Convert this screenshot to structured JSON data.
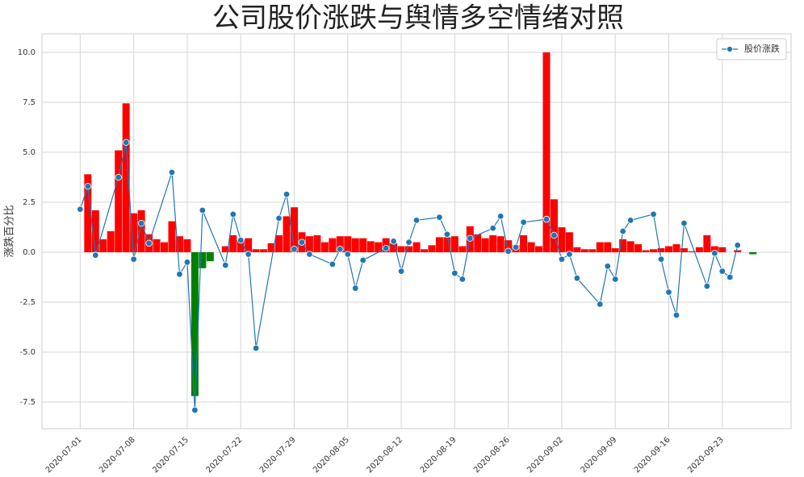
{
  "chart_data": {
    "type": "combo",
    "title": "公司股价涨跌与舆情多空情绪对照",
    "ylabel": "涨跌百分比",
    "xlim": [
      "2020-06-26",
      "2020-10-02"
    ],
    "xticks": [
      "2020-07-01",
      "2020-07-08",
      "2020-07-15",
      "2020-07-22",
      "2020-07-29",
      "2020-08-05",
      "2020-08-12",
      "2020-08-19",
      "2020-08-26",
      "2020-09-02",
      "2020-09-09",
      "2020-09-16",
      "2020-09-23"
    ],
    "ylim": [
      -8.83,
      10.93
    ],
    "yticks": [
      {
        "value": -7.5,
        "label": "-7.5"
      },
      {
        "value": -5,
        "label": "-5.0"
      },
      {
        "value": -2.5,
        "label": "-2.5"
      },
      {
        "value": 0,
        "label": "0.0"
      },
      {
        "value": 2.5,
        "label": "2.5"
      },
      {
        "value": 5,
        "label": "5.0"
      },
      {
        "value": 7.5,
        "label": "7.5"
      },
      {
        "value": 10,
        "label": "10.0"
      }
    ],
    "grid": true,
    "legend": "upper right",
    "series": [
      {
        "type": "bar",
        "color": "#ff0000",
        "negative_color": "#008000",
        "x": [
          "2020-07-02",
          "2020-07-03",
          "2020-07-04",
          "2020-07-05",
          "2020-07-06",
          "2020-07-07",
          "2020-07-08",
          "2020-07-09",
          "2020-07-10",
          "2020-07-11",
          "2020-07-12",
          "2020-07-13",
          "2020-07-14",
          "2020-07-15",
          "2020-07-16",
          "2020-07-17",
          "2020-07-18",
          "2020-07-20",
          "2020-07-21",
          "2020-07-22",
          "2020-07-23",
          "2020-07-24",
          "2020-07-25",
          "2020-07-26",
          "2020-07-27",
          "2020-07-28",
          "2020-07-29",
          "2020-07-30",
          "2020-07-31",
          "2020-08-01",
          "2020-08-02",
          "2020-08-03",
          "2020-08-04",
          "2020-08-05",
          "2020-08-06",
          "2020-08-07",
          "2020-08-08",
          "2020-08-09",
          "2020-08-10",
          "2020-08-11",
          "2020-08-12",
          "2020-08-13",
          "2020-08-14",
          "2020-08-15",
          "2020-08-16",
          "2020-08-17",
          "2020-08-18",
          "2020-08-19",
          "2020-08-20",
          "2020-08-21",
          "2020-08-22",
          "2020-08-23",
          "2020-08-24",
          "2020-08-25",
          "2020-08-26",
          "2020-08-27",
          "2020-08-28",
          "2020-08-29",
          "2020-08-30",
          "2020-08-31",
          "2020-09-01",
          "2020-09-02",
          "2020-09-03",
          "2020-09-04",
          "2020-09-05",
          "2020-09-06",
          "2020-09-07",
          "2020-09-08",
          "2020-09-09",
          "2020-09-10",
          "2020-09-11",
          "2020-09-12",
          "2020-09-13",
          "2020-09-14",
          "2020-09-15",
          "2020-09-16",
          "2020-09-17",
          "2020-09-18",
          "2020-09-19",
          "2020-09-20",
          "2020-09-21",
          "2020-09-22",
          "2020-09-23",
          "2020-09-25",
          "2020-09-27"
        ],
        "values": [
          3.9,
          2.1,
          0.65,
          1.05,
          5.1,
          7.45,
          1.95,
          2.1,
          0.9,
          0.65,
          0.5,
          1.55,
          0.8,
          0.65,
          -7.2,
          -0.8,
          -0.45,
          0.3,
          0.85,
          0.6,
          0.7,
          0.15,
          0.15,
          0.45,
          0.85,
          1.8,
          2.25,
          1.0,
          0.8,
          0.85,
          0.5,
          0.7,
          0.8,
          0.8,
          0.7,
          0.7,
          0.55,
          0.5,
          0.7,
          0.45,
          0.3,
          0.3,
          0.5,
          0.15,
          0.35,
          0.75,
          0.75,
          0.8,
          0.3,
          1.3,
          0.9,
          0.7,
          0.85,
          0.8,
          0.6,
          0.35,
          0.85,
          0.5,
          0.3,
          10.0,
          2.65,
          1.25,
          1.0,
          0.25,
          0.15,
          0.15,
          0.5,
          0.5,
          0.2,
          0.65,
          0.55,
          0.4,
          0.1,
          0.15,
          0.2,
          0.3,
          0.4,
          0.2,
          0.05,
          0.25,
          0.85,
          0.3,
          0.25,
          0.1,
          -0.1
        ]
      },
      {
        "type": "line",
        "name": "股价涨跌",
        "color": "#1f77b4",
        "x": [
          "2020-07-01",
          "2020-07-02",
          "2020-07-03",
          "2020-07-06",
          "2020-07-07",
          "2020-07-08",
          "2020-07-09",
          "2020-07-10",
          "2020-07-13",
          "2020-07-14",
          "2020-07-15",
          "2020-07-16",
          "2020-07-17",
          "2020-07-20",
          "2020-07-21",
          "2020-07-22",
          "2020-07-23",
          "2020-07-24",
          "2020-07-27",
          "2020-07-28",
          "2020-07-29",
          "2020-07-30",
          "2020-07-31",
          "2020-08-03",
          "2020-08-04",
          "2020-08-05",
          "2020-08-06",
          "2020-08-07",
          "2020-08-10",
          "2020-08-11",
          "2020-08-12",
          "2020-08-13",
          "2020-08-14",
          "2020-08-17",
          "2020-08-18",
          "2020-08-19",
          "2020-08-20",
          "2020-08-21",
          "2020-08-24",
          "2020-08-25",
          "2020-08-26",
          "2020-08-27",
          "2020-08-28",
          "2020-08-31",
          "2020-09-01",
          "2020-09-02",
          "2020-09-03",
          "2020-09-04",
          "2020-09-07",
          "2020-09-08",
          "2020-09-09",
          "2020-09-10",
          "2020-09-11",
          "2020-09-14",
          "2020-09-15",
          "2020-09-16",
          "2020-09-17",
          "2020-09-18",
          "2020-09-21",
          "2020-09-22",
          "2020-09-23",
          "2020-09-24",
          "2020-09-25"
        ],
        "values": [
          2.15,
          3.3,
          -0.15,
          3.75,
          5.5,
          -0.35,
          1.45,
          0.45,
          4.0,
          -1.1,
          -0.5,
          -7.9,
          2.1,
          -0.65,
          1.9,
          0.6,
          -0.1,
          -4.8,
          1.7,
          2.9,
          0.15,
          0.5,
          -0.1,
          -0.6,
          0.15,
          -0.1,
          -1.8,
          -0.4,
          0.2,
          0.55,
          -0.95,
          0.5,
          1.6,
          1.75,
          0.9,
          -1.05,
          -1.35,
          0.7,
          1.2,
          1.8,
          0.05,
          0.25,
          1.5,
          1.65,
          0.85,
          -0.35,
          -0.1,
          -1.3,
          -2.6,
          -0.7,
          -1.35,
          1.05,
          1.6,
          1.9,
          -0.35,
          -2.0,
          -3.15,
          1.45,
          -1.7,
          -0.05,
          -0.95,
          -1.25,
          0.35
        ]
      }
    ]
  }
}
